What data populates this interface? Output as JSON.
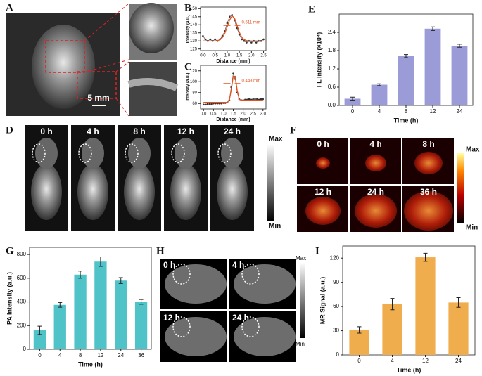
{
  "figure": {
    "panel_labels": [
      "A",
      "B",
      "C",
      "D",
      "E",
      "F",
      "G",
      "H",
      "I"
    ],
    "scale_bar": "5 mm",
    "d_times": [
      "0 h",
      "4 h",
      "8 h",
      "12 h",
      "24 h"
    ],
    "f_times": [
      "0 h",
      "4 h",
      "8 h",
      "12 h",
      "24 h",
      "36 h"
    ],
    "h_times": [
      "0 h",
      "4 h",
      "12 h",
      "24 h"
    ],
    "max": "Max",
    "min": "Min"
  },
  "chart_data": [
    {
      "type": "line",
      "x_label": "Distance (mm)",
      "y_label": "Intensity (a.u.)",
      "annotation": "0.511 mm",
      "x": [
        0,
        0.1,
        0.2,
        0.3,
        0.4,
        0.5,
        0.6,
        0.7,
        0.8,
        0.9,
        1.0,
        1.1,
        1.2,
        1.3,
        1.4,
        1.5,
        1.6,
        1.7,
        1.8,
        1.9,
        2.0,
        2.1,
        2.2,
        2.3,
        2.4,
        2.5
      ],
      "series": [
        {
          "color": "#333333",
          "values": [
            133,
            131,
            130,
            131,
            130,
            131,
            130,
            131,
            133,
            136,
            141,
            145,
            146,
            143,
            138,
            134,
            131,
            130,
            129,
            130,
            129,
            130,
            129,
            130,
            130,
            131
          ]
        },
        {
          "color": "#e8501e",
          "values": [
            130,
            130,
            130,
            130,
            130,
            130,
            130.2,
            130.7,
            132,
            134.6,
            138.7,
            143,
            145.5,
            144.2,
            140,
            135.4,
            132.3,
            130.8,
            130.2,
            130,
            130,
            130,
            130,
            130,
            130,
            130
          ]
        }
      ],
      "xlim": [
        -0.1,
        2.6
      ],
      "xticks": [
        {
          "value": 0,
          "label": "0.0"
        },
        0.5,
        {
          "value": 1,
          "label": "1.0"
        },
        1.5,
        {
          "value": 2,
          "label": "2.0"
        },
        2.5
      ],
      "ylim": [
        124,
        151
      ],
      "yticks": [
        125,
        130,
        135,
        140,
        145,
        150
      ]
    },
    {
      "type": "line",
      "x_label": "Distance (mm)",
      "y_label": "Intensity (a.u.)",
      "annotation": "0.443 mm",
      "x": [
        0,
        0.1,
        0.2,
        0.3,
        0.4,
        0.5,
        0.6,
        0.7,
        0.8,
        0.9,
        1.0,
        1.1,
        1.2,
        1.3,
        1.4,
        1.5,
        1.6,
        1.7,
        1.8,
        1.9,
        2.0,
        2.1,
        2.2,
        2.3,
        2.4,
        2.5,
        2.6,
        2.7,
        2.8,
        2.9,
        3.0
      ],
      "series": [
        {
          "color": "#333333",
          "values": [
            58,
            58,
            59,
            59,
            59,
            60,
            60,
            60,
            60,
            60,
            61,
            61,
            62,
            66,
            90,
            115,
            105,
            80,
            68,
            66,
            66,
            67,
            67,
            68,
            67,
            68,
            68,
            68,
            67,
            68,
            68
          ]
        },
        {
          "color": "#e8501e",
          "values": [
            62,
            62,
            62,
            62,
            62,
            62,
            62,
            62,
            62,
            62,
            62,
            62,
            62,
            66,
            85,
            110,
            110,
            84,
            68,
            66,
            66,
            66,
            66,
            66,
            66,
            66,
            66,
            66,
            66,
            66,
            66
          ]
        }
      ],
      "xlim": [
        -0.15,
        3.15
      ],
      "xticks": [
        {
          "value": 0,
          "label": "0.0"
        },
        0.5,
        {
          "value": 1,
          "label": "1.0"
        },
        1.5,
        {
          "value": 2,
          "label": "2.0"
        },
        2.5,
        {
          "value": 3,
          "label": "3.0"
        }
      ],
      "ylim": [
        50,
        130
      ],
      "yticks": [
        60,
        80,
        100,
        120
      ]
    },
    {
      "type": "bar",
      "x_label": "Time (h)",
      "y_label": "FL Intensity (×10⁴)",
      "categories": [
        "0",
        "4",
        "8",
        "12",
        "24"
      ],
      "values": [
        0.22,
        0.68,
        1.62,
        2.52,
        1.96
      ],
      "errors": [
        0.05,
        0.03,
        0.05,
        0.06,
        0.05
      ],
      "color": "#9b9bd8",
      "ylim": [
        0,
        3.0
      ],
      "yticks": [
        {
          "value": 0,
          "label": "0.0"
        },
        0.6,
        1.2,
        1.8,
        2.4
      ]
    },
    {
      "type": "bar",
      "x_label": "Time (h)",
      "y_label": "PA Intensity (a.u.)",
      "categories": [
        "0",
        "4",
        "8",
        "12",
        "24",
        "36"
      ],
      "values": [
        160,
        375,
        630,
        740,
        580,
        400
      ],
      "errors": [
        35,
        20,
        30,
        40,
        25,
        20
      ],
      "color": "#4fc3c8",
      "ylim": [
        0,
        860
      ],
      "yticks": [
        0,
        200,
        400,
        600,
        800
      ]
    },
    {
      "type": "bar",
      "x_label": "Time (h)",
      "y_label": "MR Signal (a.u.)",
      "categories": [
        "0",
        "4",
        "12",
        "24"
      ],
      "values": [
        31,
        63,
        121,
        65
      ],
      "errors": [
        4,
        7,
        5,
        6
      ],
      "color": "#f0ad4e",
      "ylim": [
        0,
        135
      ],
      "yticks": [
        0,
        30,
        60,
        90,
        120
      ]
    }
  ]
}
